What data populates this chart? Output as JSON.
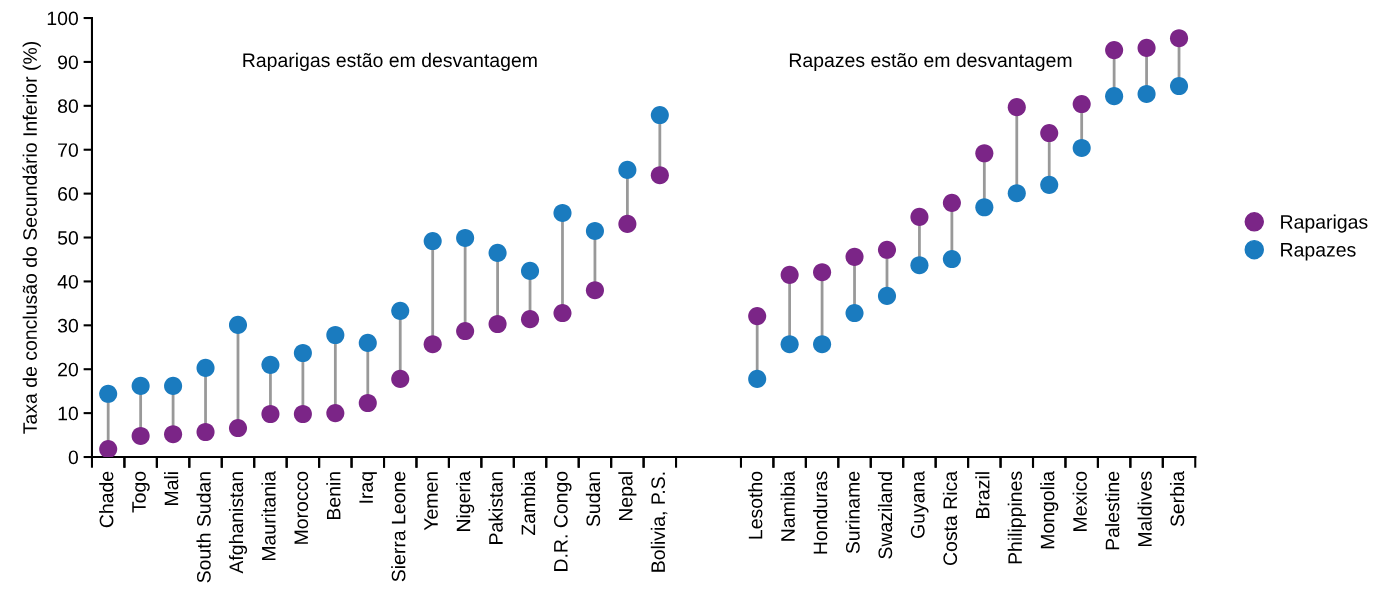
{
  "chart_data": {
    "type": "scatter",
    "ylabel": "Taxa de conclusão do Secundário Inferior (%)",
    "categories": [
      "Chade",
      "Togo",
      "Mali",
      "South Sudan",
      "Afghanistan",
      "Mauritania",
      "Morocco",
      "Benin",
      "Iraq",
      "Sierra Leone",
      "Yemen",
      "Nigeria",
      "Pakistan",
      "Zambia",
      "D.R. Congo",
      "Sudan",
      "Nepal",
      "Bolivia, P.S.",
      null,
      null,
      "Lesotho",
      "Namibia",
      "Honduras",
      "Suriname",
      "Swaziland",
      "Guyana",
      "Costa Rica",
      "Brazil",
      "Philippines",
      "Mongolia",
      "Mexico",
      "Palestine",
      "Maldives",
      "Serbia"
    ],
    "series": [
      {
        "name": "Raparigas",
        "color": "#7b2587",
        "values": [
          1.8,
          4.8,
          5.2,
          5.7,
          6.6,
          9.8,
          9.8,
          10.0,
          12.3,
          17.8,
          25.7,
          28.7,
          30.3,
          31.4,
          32.8,
          38.0,
          53.1,
          64.2,
          null,
          null,
          32.1,
          41.5,
          42.1,
          45.6,
          47.2,
          54.7,
          57.9,
          69.2,
          79.7,
          73.8,
          80.4,
          92.7,
          93.2,
          95.4
        ]
      },
      {
        "name": "Rapazes",
        "color": "#1a7bbf",
        "values": [
          14.4,
          16.2,
          16.2,
          20.3,
          30.1,
          21.0,
          23.7,
          27.8,
          26.0,
          33.3,
          49.2,
          49.9,
          46.5,
          42.4,
          55.6,
          51.5,
          65.4,
          77.9,
          null,
          null,
          17.8,
          25.7,
          25.7,
          32.8,
          36.7,
          43.7,
          45.1,
          56.9,
          60.1,
          62.0,
          70.4,
          82.2,
          82.7,
          84.5
        ]
      }
    ],
    "annotations": [
      "Raparigas estão em desvantagem",
      "Rapazes estão em desvantagem"
    ],
    "ylim": [
      0,
      100
    ],
    "yticks": [
      0,
      10,
      20,
      30,
      40,
      50,
      60,
      70,
      80,
      90,
      100
    ],
    "grid": false,
    "legend": "right",
    "marker": "circle"
  }
}
